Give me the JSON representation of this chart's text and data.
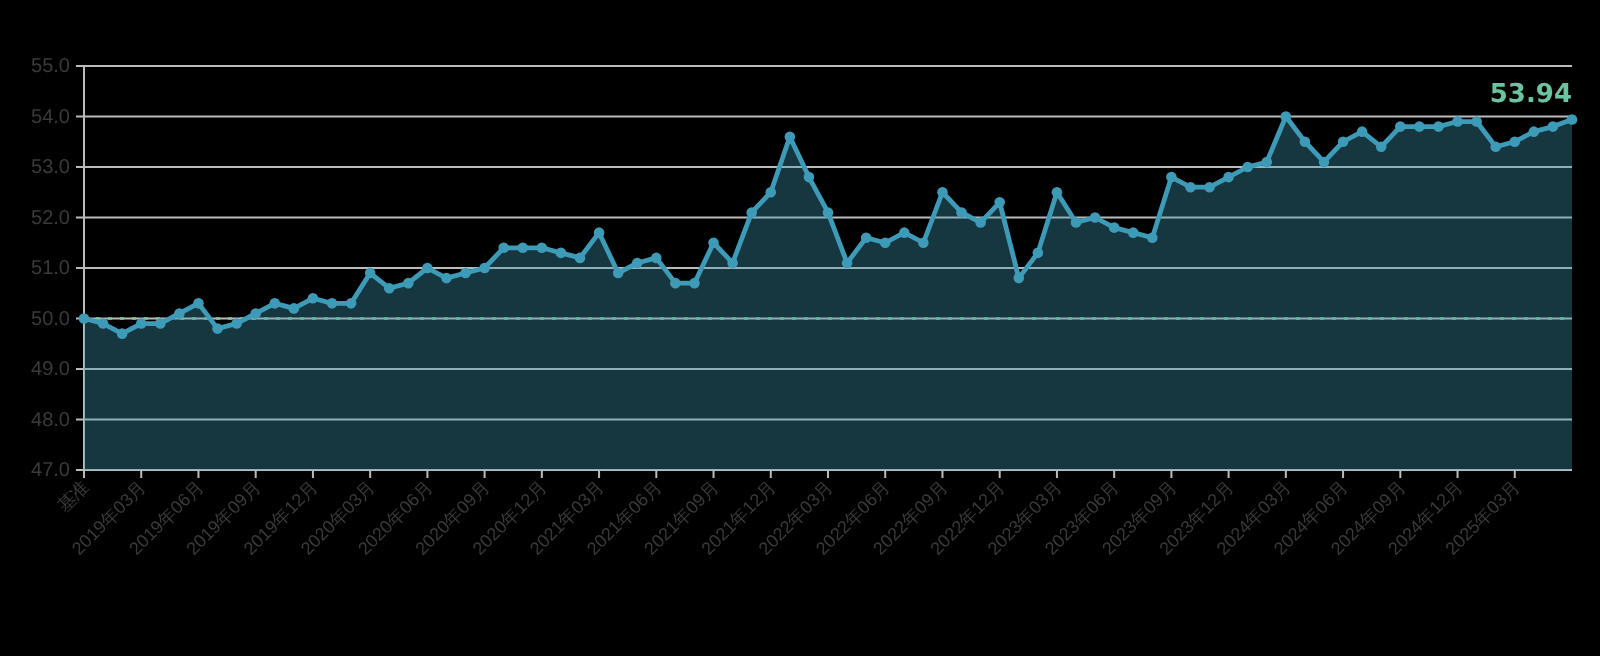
{
  "chart_data": {
    "type": "area",
    "categories": [
      "基准",
      null,
      null,
      "2019年03月",
      null,
      null,
      "2019年06月",
      null,
      null,
      "2019年09月",
      null,
      null,
      "2019年12月",
      null,
      null,
      "2020年03月",
      null,
      null,
      "2020年06月",
      null,
      null,
      "2020年09月",
      null,
      null,
      "2020年12月",
      null,
      null,
      "2021年03月",
      null,
      null,
      "2021年06月",
      null,
      null,
      "2021年09月",
      null,
      null,
      "2021年12月",
      null,
      null,
      "2022年03月",
      null,
      null,
      "2022年06月",
      null,
      null,
      "2022年09月",
      null,
      null,
      "2022年12月",
      null,
      null,
      "2023年03月",
      null,
      null,
      "2023年06月",
      null,
      null,
      "2023年09月",
      null,
      null,
      "2023年12月",
      null,
      null,
      "2024年03月",
      null,
      null,
      "2024年06月",
      null,
      null,
      "2024年09月",
      null,
      null,
      "2024年12月",
      null,
      null,
      "2025年03月",
      null,
      null,
      null
    ],
    "series": [
      {
        "color": "#3e9bb8",
        "values": [
          50.0,
          49.9,
          49.7,
          49.9,
          49.9,
          50.1,
          50.3,
          49.8,
          49.9,
          50.1,
          50.3,
          50.2,
          50.4,
          50.3,
          50.3,
          50.9,
          50.6,
          50.7,
          51.0,
          50.8,
          50.9,
          51.0,
          51.4,
          51.4,
          51.4,
          51.3,
          51.2,
          51.7,
          50.9,
          51.1,
          51.2,
          50.7,
          50.7,
          51.5,
          51.1,
          52.1,
          52.5,
          53.6,
          52.8,
          52.1,
          51.1,
          51.6,
          51.5,
          51.7,
          51.5,
          52.5,
          52.1,
          51.9,
          52.3,
          50.8,
          51.3,
          52.5,
          51.9,
          52.0,
          51.8,
          51.7,
          51.6,
          52.8,
          52.6,
          52.6,
          52.8,
          53.0,
          53.1,
          54.0,
          53.5,
          53.1,
          53.5,
          53.7,
          53.4,
          53.8,
          53.8,
          53.8,
          53.9,
          53.9,
          53.4,
          53.5,
          53.7,
          53.8,
          53.94
        ],
        "value_labels": [
          null,
          null,
          null,
          null,
          null,
          null,
          null,
          null,
          null,
          null,
          null,
          null,
          null,
          null,
          null,
          null,
          null,
          null,
          null,
          null,
          null,
          null,
          null,
          null,
          null,
          null,
          null,
          null,
          null,
          null,
          null,
          null,
          null,
          null,
          null,
          null,
          null,
          null,
          null,
          null,
          null,
          null,
          null,
          null,
          null,
          null,
          null,
          null,
          null,
          null,
          null,
          null,
          null,
          null,
          null,
          null,
          null,
          null,
          null,
          null,
          null,
          null,
          null,
          null,
          null,
          null,
          null,
          null,
          null,
          null,
          null,
          null,
          null,
          null,
          null,
          null,
          null,
          null,
          "53.94"
        ]
      }
    ],
    "ylim": [
      47,
      55
    ],
    "yticks": [
      {
        "value": 47,
        "label": "47.0"
      },
      {
        "value": 48,
        "label": "48.0"
      },
      {
        "value": 49,
        "label": "49.0"
      },
      {
        "value": 50,
        "label": "50.0"
      },
      {
        "value": 51,
        "label": "51.0"
      },
      {
        "value": 52,
        "label": "52.0"
      },
      {
        "value": 53,
        "label": "53.0"
      },
      {
        "value": 54,
        "label": "54.0"
      },
      {
        "value": 55,
        "label": "55.0"
      }
    ],
    "grid": "y",
    "marker": "circle",
    "line_style": "solid",
    "ref_lines": [
      {
        "axis": "y",
        "value": 50,
        "color": "#7fc99a",
        "line_style": "dotted"
      }
    ]
  }
}
